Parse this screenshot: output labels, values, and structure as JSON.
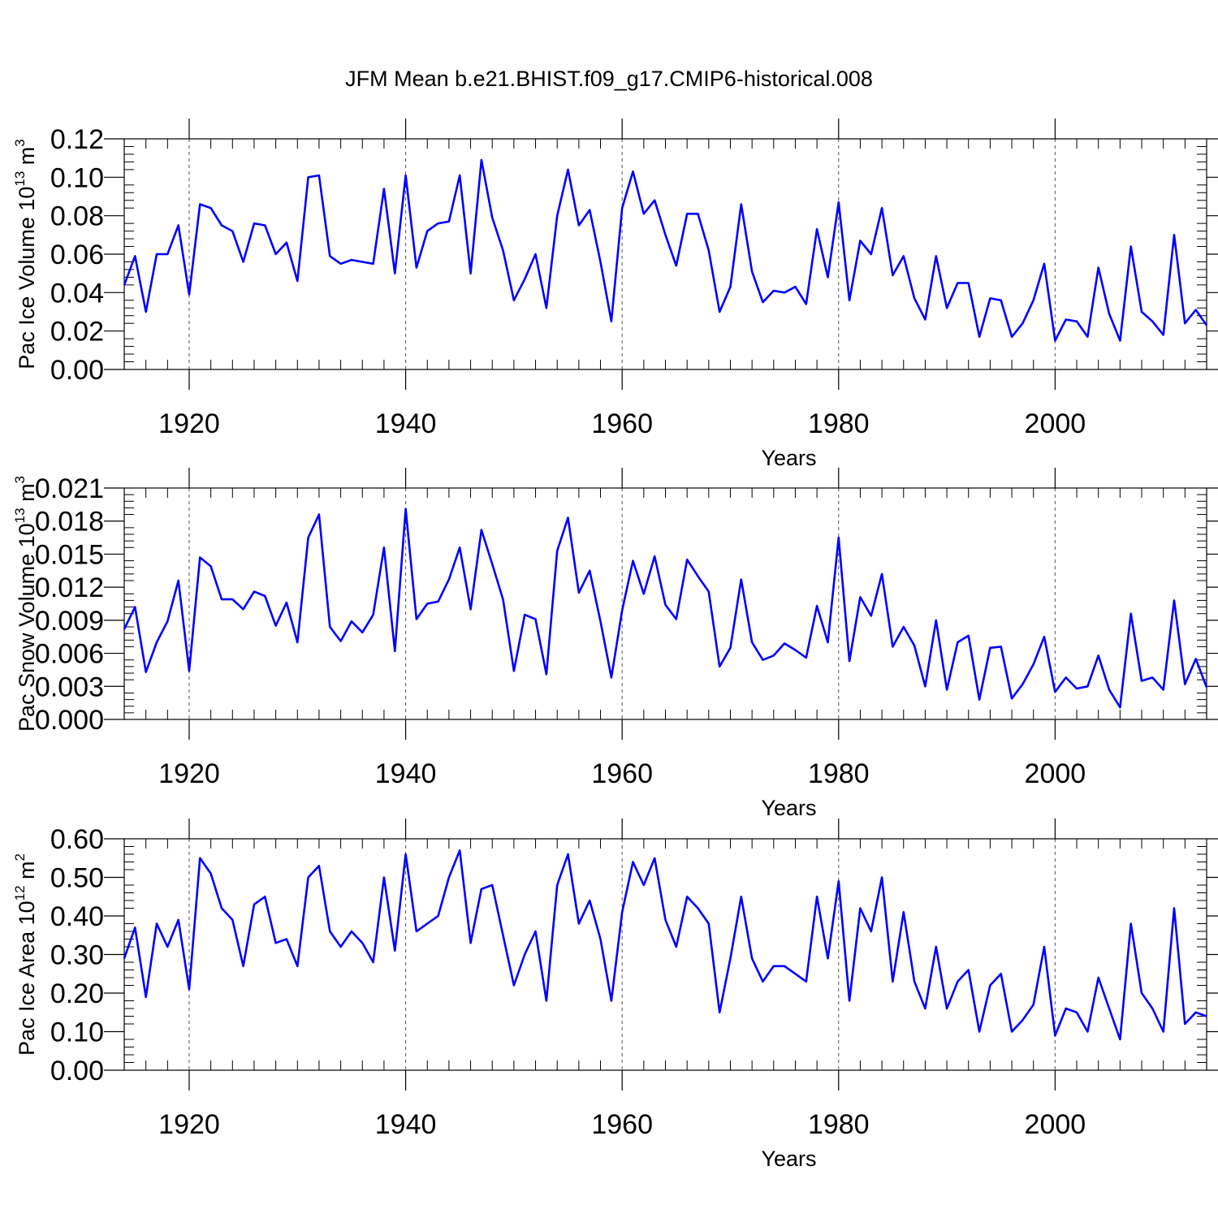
{
  "title": "JFM Mean b.e21.BHIST.f09_g17.CMIP6-historical.008",
  "colors": {
    "line": "#0000ff",
    "axis": "#000000",
    "grid": "#555555"
  },
  "chart_data": [
    {
      "type": "line",
      "ylabel_main": "Pac Ice Volume 10",
      "ylabel_exp": "13",
      "ylabel_unit": " m",
      "ylabel_unit_exp": "3",
      "xlabel": "Years",
      "xlim": [
        1914,
        2014
      ],
      "ylim": [
        0,
        0.12
      ],
      "yticks": [
        "0.00",
        "0.02",
        "0.04",
        "0.06",
        "0.08",
        "0.10",
        "0.12"
      ],
      "xticks": [
        "1920",
        "1940",
        "1960",
        "1980",
        "2000"
      ],
      "series": [
        {
          "name": "Pac Ice Volume",
          "x_start": 1914,
          "values": [
            0.044,
            0.059,
            0.03,
            0.06,
            0.06,
            0.075,
            0.039,
            0.086,
            0.084,
            0.075,
            0.072,
            0.056,
            0.076,
            0.075,
            0.06,
            0.066,
            0.046,
            0.1,
            0.101,
            0.059,
            0.055,
            0.057,
            0.056,
            0.055,
            0.094,
            0.05,
            0.101,
            0.053,
            0.072,
            0.076,
            0.077,
            0.101,
            0.05,
            0.109,
            0.079,
            0.062,
            0.036,
            0.047,
            0.06,
            0.032,
            0.08,
            0.104,
            0.075,
            0.083,
            0.056,
            0.025,
            0.084,
            0.103,
            0.081,
            0.088,
            0.07,
            0.054,
            0.081,
            0.081,
            0.062,
            0.03,
            0.043,
            0.086,
            0.051,
            0.035,
            0.041,
            0.04,
            0.043,
            0.034,
            0.073,
            0.048,
            0.087,
            0.036,
            0.067,
            0.06,
            0.084,
            0.049,
            0.059,
            0.037,
            0.026,
            0.059,
            0.032,
            0.045,
            0.045,
            0.017,
            0.037,
            0.036,
            0.017,
            0.024,
            0.036,
            0.055,
            0.015,
            0.026,
            0.025,
            0.017,
            0.053,
            0.029,
            0.015,
            0.064,
            0.03,
            0.025,
            0.018,
            0.07,
            0.024,
            0.031,
            0.023
          ]
        }
      ]
    },
    {
      "type": "line",
      "ylabel_main": "Pac Snow Volume 10",
      "ylabel_exp": "13",
      "ylabel_unit": " m",
      "ylabel_unit_exp": "3",
      "xlabel": "Years",
      "xlim": [
        1914,
        2014
      ],
      "ylim": [
        0,
        0.021
      ],
      "yticks": [
        "0.000",
        "0.003",
        "0.006",
        "0.009",
        "0.012",
        "0.015",
        "0.018",
        "0.021"
      ],
      "xticks": [
        "1920",
        "1940",
        "1960",
        "1980",
        "2000"
      ],
      "series": [
        {
          "name": "Pac Snow Volume",
          "x_start": 1914,
          "values": [
            0.0082,
            0.0102,
            0.0043,
            0.007,
            0.0089,
            0.0126,
            0.0044,
            0.0147,
            0.0139,
            0.0109,
            0.0109,
            0.01,
            0.0116,
            0.0112,
            0.0085,
            0.0106,
            0.007,
            0.0165,
            0.0186,
            0.0084,
            0.0071,
            0.0089,
            0.0079,
            0.0095,
            0.0156,
            0.0062,
            0.0191,
            0.0091,
            0.0105,
            0.0107,
            0.0127,
            0.0156,
            0.01,
            0.0172,
            0.0141,
            0.0109,
            0.0044,
            0.0095,
            0.0091,
            0.0041,
            0.0153,
            0.0183,
            0.0115,
            0.0135,
            0.0089,
            0.0038,
            0.0099,
            0.0144,
            0.0114,
            0.0148,
            0.0104,
            0.0091,
            0.0145,
            0.013,
            0.0116,
            0.0048,
            0.0065,
            0.0127,
            0.007,
            0.0054,
            0.0058,
            0.0069,
            0.0063,
            0.0056,
            0.0103,
            0.007,
            0.0165,
            0.0053,
            0.0111,
            0.0094,
            0.0132,
            0.0066,
            0.0084,
            0.0067,
            0.003,
            0.009,
            0.0027,
            0.007,
            0.0076,
            0.0018,
            0.0065,
            0.0066,
            0.0019,
            0.0032,
            0.005,
            0.0075,
            0.0025,
            0.0038,
            0.0028,
            0.003,
            0.0058,
            0.0027,
            0.0011,
            0.0096,
            0.0035,
            0.0038,
            0.0027,
            0.0108,
            0.0032,
            0.0055,
            0.0029
          ]
        }
      ]
    },
    {
      "type": "line",
      "ylabel_main": "Pac Ice Area 10",
      "ylabel_exp": "12",
      "ylabel_unit": " m",
      "ylabel_unit_exp": "2",
      "xlabel": "Years",
      "xlim": [
        1914,
        2014
      ],
      "ylim": [
        0,
        0.6
      ],
      "yticks": [
        "0.00",
        "0.10",
        "0.20",
        "0.30",
        "0.40",
        "0.50",
        "0.60"
      ],
      "xticks": [
        "1920",
        "1940",
        "1960",
        "1980",
        "2000"
      ],
      "series": [
        {
          "name": "Pac Ice Area",
          "x_start": 1914,
          "values": [
            0.29,
            0.37,
            0.19,
            0.38,
            0.32,
            0.39,
            0.21,
            0.55,
            0.51,
            0.42,
            0.39,
            0.27,
            0.43,
            0.45,
            0.33,
            0.34,
            0.27,
            0.5,
            0.53,
            0.36,
            0.32,
            0.36,
            0.33,
            0.28,
            0.5,
            0.31,
            0.56,
            0.36,
            0.38,
            0.4,
            0.5,
            0.57,
            0.33,
            0.47,
            0.48,
            0.35,
            0.22,
            0.3,
            0.36,
            0.18,
            0.48,
            0.56,
            0.38,
            0.44,
            0.34,
            0.18,
            0.41,
            0.54,
            0.48,
            0.55,
            0.39,
            0.32,
            0.45,
            0.42,
            0.38,
            0.15,
            0.29,
            0.45,
            0.29,
            0.23,
            0.27,
            0.27,
            0.25,
            0.23,
            0.45,
            0.29,
            0.49,
            0.18,
            0.42,
            0.36,
            0.5,
            0.23,
            0.41,
            0.23,
            0.16,
            0.32,
            0.16,
            0.23,
            0.26,
            0.1,
            0.22,
            0.25,
            0.1,
            0.13,
            0.17,
            0.32,
            0.09,
            0.16,
            0.15,
            0.1,
            0.24,
            0.16,
            0.08,
            0.38,
            0.2,
            0.16,
            0.1,
            0.42,
            0.12,
            0.15,
            0.14
          ]
        }
      ]
    }
  ]
}
